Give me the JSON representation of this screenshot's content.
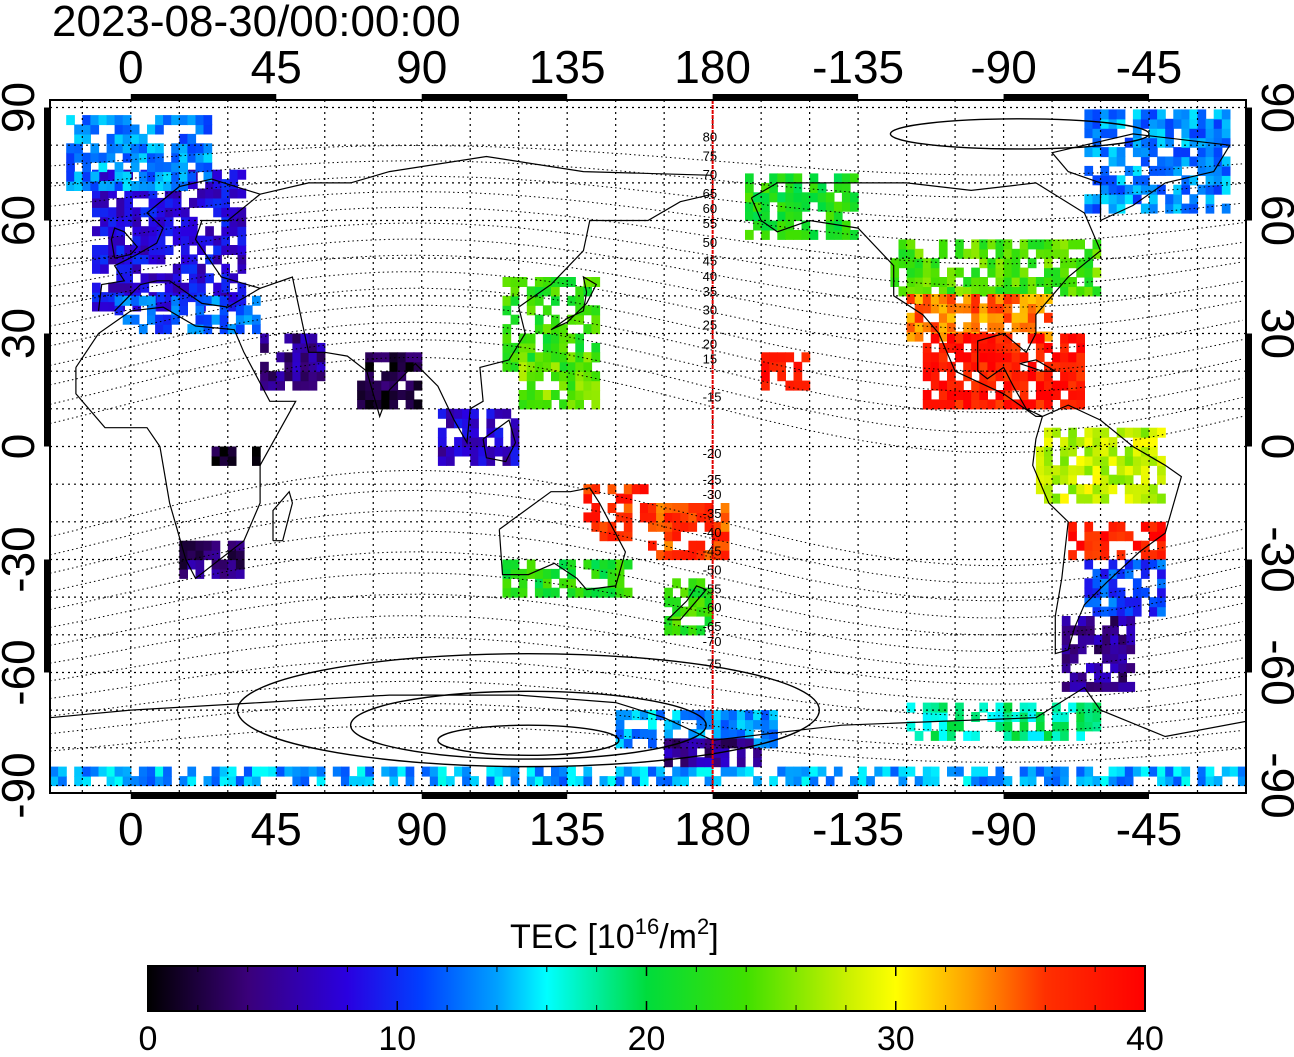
{
  "title": "2023-08-30/00:00:00",
  "map": {
    "lon_range": [
      -25,
      345
    ],
    "lat_range": [
      -92,
      92
    ],
    "lon_ticks": [
      {
        "value": 0,
        "label": "0"
      },
      {
        "value": 45,
        "label": "45"
      },
      {
        "value": 90,
        "label": "90"
      },
      {
        "value": 135,
        "label": "135"
      },
      {
        "value": 180,
        "label": "180"
      },
      {
        "value": 225,
        "label": "-135"
      },
      {
        "value": 270,
        "label": "-90"
      },
      {
        "value": 315,
        "label": "-45"
      }
    ],
    "lat_ticks": [
      {
        "value": 90,
        "label": "90"
      },
      {
        "value": 60,
        "label": "60"
      },
      {
        "value": 30,
        "label": "30"
      },
      {
        "value": 0,
        "label": "0"
      },
      {
        "value": -30,
        "label": "-30"
      },
      {
        "value": -60,
        "label": "-60"
      },
      {
        "value": -90,
        "label": "-90"
      }
    ],
    "grid_lon_step": 15,
    "grid_lat_step": 10,
    "meridian_line": {
      "lon": 180,
      "color": "#e00000"
    },
    "magnetic_latitude_labels": [
      "80",
      "75",
      "70",
      "65",
      "60",
      "55",
      "50",
      "45",
      "40",
      "35",
      "30",
      "25",
      "20",
      "15",
      "-15",
      "-20",
      "-25",
      "-30",
      "-35",
      "-40",
      "-45",
      "-50",
      "-55",
      "-60",
      "-65",
      "-70",
      "-75"
    ]
  },
  "colorbar": {
    "title": "TEC",
    "unit_base": "[10",
    "unit_exp": "16",
    "unit_mid": "/m",
    "unit_exp2": "2",
    "unit_end": "]",
    "min": 0,
    "max": 40,
    "tick_labels": [
      "0",
      "10",
      "20",
      "30",
      "40"
    ],
    "stops": [
      {
        "v": 0,
        "color": "#000000"
      },
      {
        "v": 4,
        "color": "#3a007a"
      },
      {
        "v": 8,
        "color": "#2a00e0"
      },
      {
        "v": 11,
        "color": "#0040ff"
      },
      {
        "v": 14,
        "color": "#00a0ff"
      },
      {
        "v": 16,
        "color": "#00ffff"
      },
      {
        "v": 20,
        "color": "#00dc3c"
      },
      {
        "v": 24,
        "color": "#40e000"
      },
      {
        "v": 28,
        "color": "#c8f000"
      },
      {
        "v": 30,
        "color": "#ffff00"
      },
      {
        "v": 33,
        "color": "#ffa000"
      },
      {
        "v": 36,
        "color": "#ff3000"
      },
      {
        "v": 40,
        "color": "#ff0000"
      }
    ]
  },
  "tec_regions": [
    {
      "region": "europe",
      "lon": [
        -12,
        35
      ],
      "lat": [
        36,
        72
      ],
      "tec": 8
    },
    {
      "region": "greenland-atlantic",
      "lon": [
        -20,
        25
      ],
      "lat": [
        68,
        88
      ],
      "tec": 13
    },
    {
      "region": "mediterranean",
      "lon": [
        -5,
        40
      ],
      "lat": [
        30,
        40
      ],
      "tec": 12
    },
    {
      "region": "arabia",
      "lon": [
        40,
        60
      ],
      "lat": [
        15,
        30
      ],
      "tec": 5
    },
    {
      "region": "india",
      "lon": [
        70,
        90
      ],
      "lat": [
        10,
        25
      ],
      "tec": 2
    },
    {
      "region": "africa-central",
      "lon": [
        25,
        40
      ],
      "lat": [
        -5,
        0
      ],
      "tec": 1
    },
    {
      "region": "south-africa",
      "lon": [
        15,
        35
      ],
      "lat": [
        -35,
        -25
      ],
      "tec": 4
    },
    {
      "region": "east-asia",
      "lon": [
        115,
        145
      ],
      "lat": [
        20,
        45
      ],
      "tec": 23
    },
    {
      "region": "japan-south",
      "lon": [
        120,
        145
      ],
      "lat": [
        10,
        25
      ],
      "tec": 25
    },
    {
      "region": "indonesia",
      "lon": [
        95,
        120
      ],
      "lat": [
        -5,
        10
      ],
      "tec": 7
    },
    {
      "region": "australia-north",
      "lon": [
        140,
        160
      ],
      "lat": [
        -25,
        -10
      ],
      "tec": 37
    },
    {
      "region": "australia-south",
      "lon": [
        115,
        155
      ],
      "lat": [
        -40,
        -30
      ],
      "tec": 22
    },
    {
      "region": "new-zealand",
      "lon": [
        165,
        180
      ],
      "lat": [
        -50,
        -35
      ],
      "tec": 23
    },
    {
      "region": "pacific-islands",
      "lon": [
        160,
        185
      ],
      "lat": [
        -30,
        -15
      ],
      "tec": 36
    },
    {
      "region": "hawaii",
      "lon": [
        195,
        210
      ],
      "lat": [
        15,
        25
      ],
      "tec": 38
    },
    {
      "region": "alaska",
      "lon": [
        190,
        225
      ],
      "lat": [
        55,
        72
      ],
      "tec": 22
    },
    {
      "region": "north-america",
      "lon": [
        235,
        300
      ],
      "lat": [
        40,
        55
      ],
      "tec": 24
    },
    {
      "region": "usa-south",
      "lon": [
        240,
        285
      ],
      "lat": [
        28,
        40
      ],
      "tec": 34
    },
    {
      "region": "mexico-caribbean",
      "lon": [
        245,
        295
      ],
      "lat": [
        10,
        28
      ],
      "tec": 38
    },
    {
      "region": "south-america-north",
      "lon": [
        280,
        320
      ],
      "lat": [
        -15,
        5
      ],
      "tec": 28
    },
    {
      "region": "south-america-mid",
      "lon": [
        290,
        320
      ],
      "lat": [
        -30,
        -20
      ],
      "tec": 38
    },
    {
      "region": "argentina",
      "lon": [
        295,
        320
      ],
      "lat": [
        -45,
        -30
      ],
      "tec": 11
    },
    {
      "region": "patagonia",
      "lon": [
        288,
        310
      ],
      "lat": [
        -65,
        -45
      ],
      "tec": 5
    },
    {
      "region": "canada-arctic",
      "lon": [
        295,
        340
      ],
      "lat": [
        62,
        88
      ],
      "tec": 13
    },
    {
      "region": "antarctica-peninsula",
      "lon": [
        150,
        200
      ],
      "lat": [
        -80,
        -70
      ],
      "tec": 14
    },
    {
      "region": "antarctic-coast",
      "lon": [
        240,
        300
      ],
      "lat": [
        -78,
        -70
      ],
      "tec": 18
    },
    {
      "region": "antarctic-ring",
      "lon": [
        -25,
        345
      ],
      "lat": [
        -90,
        -86
      ],
      "tec": 14
    },
    {
      "region": "ross-sea",
      "lon": [
        165,
        195
      ],
      "lat": [
        -85,
        -78
      ],
      "tec": 5
    }
  ]
}
